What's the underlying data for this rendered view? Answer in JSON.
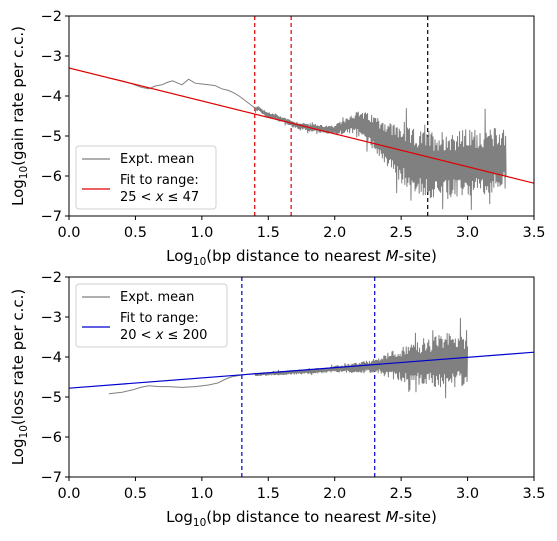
{
  "chart_data": [
    {
      "type": "line",
      "xlabel": "Log10(bp distance to nearest M-site)",
      "ylabel": "Log10(gain rate per c.c.)",
      "xlim": [
        0.0,
        3.5
      ],
      "ylim": [
        -7,
        -2
      ],
      "xticks": [
        "0.0",
        "0.5",
        "1.0",
        "1.5",
        "2.0",
        "2.5",
        "3.0",
        "3.5"
      ],
      "yticks": [
        "−2",
        "−3",
        "−4",
        "−5",
        "−6",
        "−7"
      ],
      "grid": false,
      "legend": {
        "placement": "lower-left",
        "entries": [
          {
            "label": "Expt. mean",
            "color": "#808080"
          },
          {
            "label_line1": "Fit to range:",
            "label_line2": "25  < x ≤  47",
            "color": "#e00000"
          }
        ]
      },
      "series": [
        {
          "name": "Expt. mean",
          "color": "#808080",
          "points": [
            [
              0.3,
              -3.55
            ],
            [
              0.4,
              -3.62
            ],
            [
              0.48,
              -3.7
            ],
            [
              0.54,
              -3.78
            ],
            [
              0.6,
              -3.82
            ],
            [
              0.65,
              -3.75
            ],
            [
              0.7,
              -3.72
            ],
            [
              0.74,
              -3.66
            ],
            [
              0.78,
              -3.62
            ],
            [
              0.82,
              -3.68
            ],
            [
              0.85,
              -3.72
            ],
            [
              0.9,
              -3.58
            ],
            [
              0.95,
              -3.68
            ],
            [
              1.0,
              -3.7
            ],
            [
              1.05,
              -3.72
            ],
            [
              1.1,
              -3.74
            ],
            [
              1.15,
              -3.82
            ],
            [
              1.2,
              -3.86
            ],
            [
              1.24,
              -3.92
            ],
            [
              1.28,
              -4.0
            ],
            [
              1.32,
              -4.1
            ],
            [
              1.36,
              -4.2
            ],
            [
              1.4,
              -4.35
            ],
            [
              1.43,
              -4.3
            ],
            [
              1.46,
              -4.4
            ],
            [
              1.5,
              -4.48
            ],
            [
              1.55,
              -4.52
            ],
            [
              1.6,
              -4.58
            ],
            [
              1.65,
              -4.65
            ],
            [
              1.7,
              -4.72
            ],
            [
              1.75,
              -4.75
            ],
            [
              1.8,
              -4.78
            ],
            [
              1.85,
              -4.8
            ],
            [
              1.9,
              -4.82
            ],
            [
              1.95,
              -4.85
            ],
            [
              2.0,
              -4.86
            ],
            [
              2.05,
              -4.78
            ],
            [
              2.1,
              -4.72
            ],
            [
              2.15,
              -4.68
            ],
            [
              2.2,
              -4.7
            ],
            [
              2.25,
              -4.82
            ],
            [
              2.3,
              -4.92
            ],
            [
              2.35,
              -5.05
            ],
            [
              2.4,
              -5.2
            ],
            [
              2.45,
              -5.35
            ],
            [
              2.5,
              -5.45
            ],
            [
              2.55,
              -5.55
            ],
            [
              2.6,
              -5.62
            ],
            [
              2.65,
              -5.68
            ],
            [
              2.7,
              -5.7
            ],
            [
              2.75,
              -5.72
            ],
            [
              2.8,
              -5.74
            ],
            [
              2.85,
              -5.74
            ],
            [
              2.9,
              -5.72
            ],
            [
              2.95,
              -5.7
            ],
            [
              3.0,
              -5.68
            ],
            [
              3.05,
              -5.66
            ],
            [
              3.1,
              -5.64
            ],
            [
              3.15,
              -5.62
            ],
            [
              3.2,
              -5.6
            ],
            [
              3.25,
              -5.58
            ],
            [
              3.29,
              -5.55
            ]
          ],
          "noise": {
            "x_from": 1.4,
            "x_to": 3.29,
            "amplitude_at": [
              [
                1.4,
                0.06
              ],
              [
                2.0,
                0.12
              ],
              [
                2.3,
                0.45
              ],
              [
                2.5,
                0.75
              ],
              [
                2.8,
                0.9
              ],
              [
                3.29,
                0.8
              ]
            ]
          }
        },
        {
          "name": "Fit to range: 25 < x ≤ 47",
          "color": "#e00000",
          "type": "line",
          "x": [
            0.0,
            3.5
          ],
          "y": [
            -3.3,
            -6.18
          ]
        }
      ],
      "vlines": [
        {
          "x": 1.398,
          "color": "#e00000",
          "style": "dashed"
        },
        {
          "x": 1.672,
          "color": "#e00000",
          "style": "dashed"
        },
        {
          "x": 2.7,
          "color": "#000000",
          "style": "dashed"
        }
      ]
    },
    {
      "type": "line",
      "xlabel": "Log10(bp distance to nearest M-site)",
      "ylabel": "Log10(loss rate per c.c.)",
      "xlim": [
        0.0,
        3.5
      ],
      "ylim": [
        -7,
        -2
      ],
      "xticks": [
        "0.0",
        "0.5",
        "1.0",
        "1.5",
        "2.0",
        "2.5",
        "3.0",
        "3.5"
      ],
      "yticks": [
        "−2",
        "−3",
        "−4",
        "−5",
        "−6",
        "−7"
      ],
      "grid": false,
      "legend": {
        "placement": "upper-left",
        "entries": [
          {
            "label": "Expt. mean",
            "color": "#808080"
          },
          {
            "label_line1": "Fit to range:",
            "label_line2": "20  < x ≤  200",
            "color": "#0000d0"
          }
        ]
      },
      "series": [
        {
          "name": "Expt. mean",
          "color": "#808080",
          "points": [
            [
              0.3,
              -4.92
            ],
            [
              0.4,
              -4.88
            ],
            [
              0.48,
              -4.82
            ],
            [
              0.54,
              -4.76
            ],
            [
              0.6,
              -4.72
            ],
            [
              0.68,
              -4.74
            ],
            [
              0.75,
              -4.74
            ],
            [
              0.85,
              -4.76
            ],
            [
              0.95,
              -4.74
            ],
            [
              1.05,
              -4.7
            ],
            [
              1.12,
              -4.65
            ],
            [
              1.18,
              -4.55
            ],
            [
              1.22,
              -4.5
            ],
            [
              1.3,
              -4.45
            ],
            [
              1.4,
              -4.44
            ],
            [
              1.5,
              -4.42
            ],
            [
              1.6,
              -4.4
            ],
            [
              1.7,
              -4.38
            ],
            [
              1.8,
              -4.36
            ],
            [
              1.9,
              -4.34
            ],
            [
              2.0,
              -4.3
            ],
            [
              2.1,
              -4.28
            ],
            [
              2.2,
              -4.26
            ],
            [
              2.3,
              -4.22
            ],
            [
              2.4,
              -4.2
            ],
            [
              2.5,
              -4.18
            ],
            [
              2.6,
              -4.16
            ],
            [
              2.7,
              -4.14
            ],
            [
              2.8,
              -4.1
            ],
            [
              2.9,
              -4.08
            ],
            [
              3.0,
              -4.05
            ]
          ],
          "noise": {
            "x_from": 1.4,
            "x_to": 3.0,
            "amplitude_at": [
              [
                1.4,
                0.04
              ],
              [
                2.0,
                0.08
              ],
              [
                2.3,
                0.18
              ],
              [
                2.5,
                0.45
              ],
              [
                2.7,
                0.6
              ],
              [
                2.9,
                0.75
              ],
              [
                3.0,
                0.6
              ]
            ]
          }
        },
        {
          "name": "Fit to range: 20 < x ≤ 200",
          "color": "#0000d0",
          "type": "line",
          "x": [
            0.0,
            3.5
          ],
          "y": [
            -4.78,
            -3.88
          ]
        }
      ],
      "vlines": [
        {
          "x": 1.301,
          "color": "#0000d0",
          "style": "dashed"
        },
        {
          "x": 2.301,
          "color": "#0000d0",
          "style": "dashed"
        }
      ]
    }
  ]
}
